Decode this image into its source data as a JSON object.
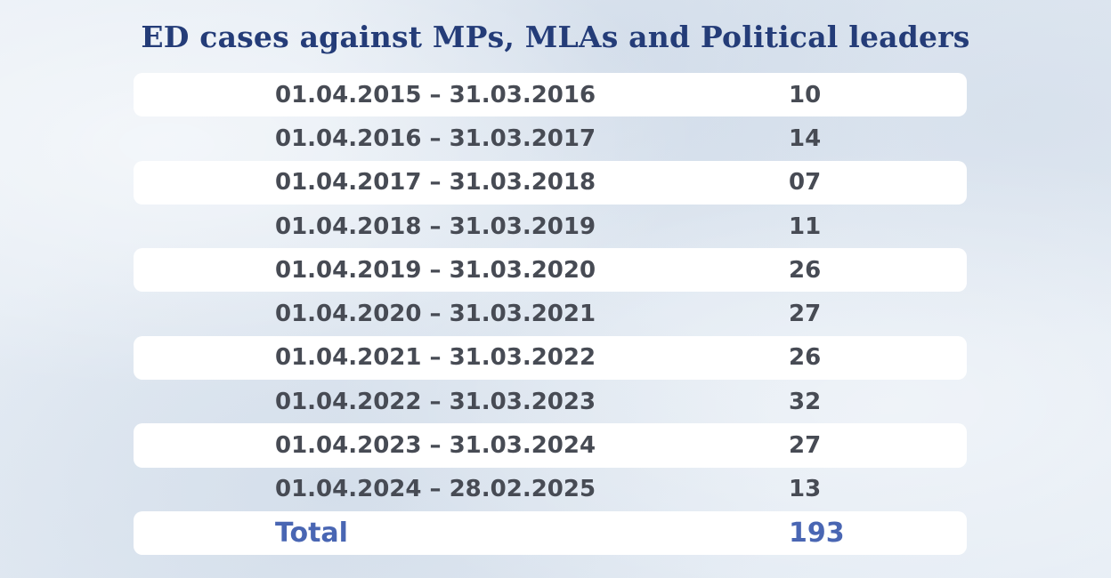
{
  "title": "ED cases against MPs, MLAs and Political leaders",
  "table": {
    "rows": [
      {
        "period": "01.04.2015 – 31.03.2016",
        "cases": "10"
      },
      {
        "period": "01.04.2016 – 31.03.2017",
        "cases": "14"
      },
      {
        "period": "01.04.2017 – 31.03.2018",
        "cases": "07"
      },
      {
        "period": "01.04.2018 – 31.03.2019",
        "cases": "11"
      },
      {
        "period": "01.04.2019 – 31.03.2020",
        "cases": "26"
      },
      {
        "period": "01.04.2020 – 31.03.2021",
        "cases": "27"
      },
      {
        "period": "01.04.2021 – 31.03.2022",
        "cases": "26"
      },
      {
        "period": "01.04.2022 – 31.03.2023",
        "cases": "32"
      },
      {
        "period": "01.04.2023 – 31.03.2024",
        "cases": "27"
      },
      {
        "period": "01.04.2024 – 28.02.2025",
        "cases": "13"
      }
    ],
    "total": {
      "label": "Total",
      "value": "193"
    }
  },
  "colors": {
    "title": "#243c78",
    "body_text": "#474b54",
    "total_text": "#4966b3",
    "row_highlight": "#ffffff",
    "background": "#e4ebf3"
  },
  "chart_data": {
    "type": "table",
    "title": "ED cases against MPs, MLAs and Political leaders",
    "columns": [
      "",
      ""
    ],
    "categories": [
      "01.04.2015 – 31.03.2016",
      "01.04.2016 – 31.03.2017",
      "01.04.2017 – 31.03.2018",
      "01.04.2018 – 31.03.2019",
      "01.04.2019 – 31.03.2020",
      "01.04.2020 – 31.03.2021",
      "01.04.2021 – 31.03.2022",
      "01.04.2022 – 31.03.2023",
      "01.04.2023 – 31.03.2024",
      "01.04.2024 – 28.02.2025"
    ],
    "values": [
      10,
      14,
      7,
      11,
      26,
      27,
      26,
      32,
      27,
      13
    ],
    "total": 193
  }
}
